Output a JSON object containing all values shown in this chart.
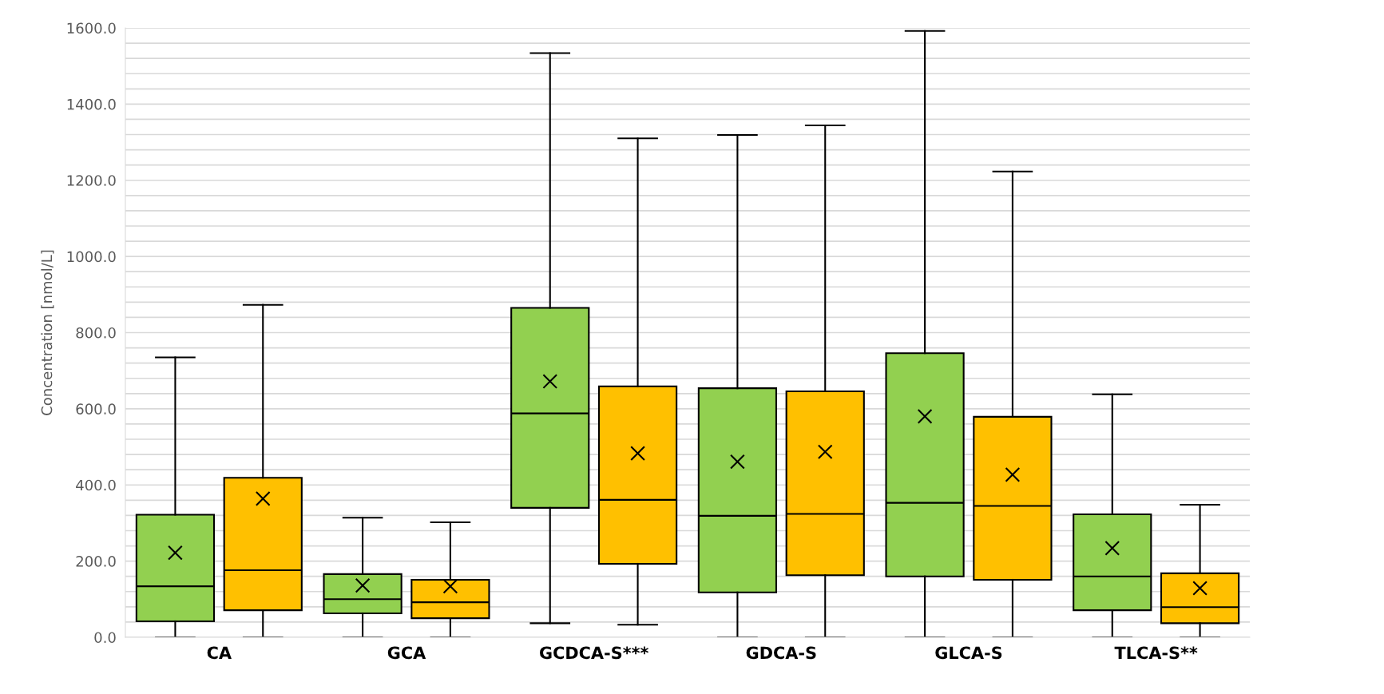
{
  "chart_data": {
    "type": "box",
    "ylabel": "Concentration [nmol/L]",
    "categories": [
      "CA",
      "GCA",
      "GCDCA-S***",
      "GDCA-S",
      "GLCA-S",
      "TLCA-S**"
    ],
    "ylim": [
      0,
      1600
    ],
    "yticks": [
      {
        "value": 0,
        "label": "0.0"
      },
      {
        "value": 40,
        "label": null
      },
      {
        "value": 80,
        "label": null
      },
      {
        "value": 120,
        "label": null
      },
      {
        "value": 160,
        "label": null
      },
      {
        "value": 200,
        "label": "200.0"
      },
      {
        "value": 240,
        "label": null
      },
      {
        "value": 280,
        "label": null
      },
      {
        "value": 320,
        "label": null
      },
      {
        "value": 360,
        "label": null
      },
      {
        "value": 400,
        "label": "400.0"
      },
      {
        "value": 440,
        "label": null
      },
      {
        "value": 480,
        "label": null
      },
      {
        "value": 520,
        "label": null
      },
      {
        "value": 560,
        "label": null
      },
      {
        "value": 600,
        "label": "600.0"
      },
      {
        "value": 640,
        "label": null
      },
      {
        "value": 680,
        "label": null
      },
      {
        "value": 720,
        "label": null
      },
      {
        "value": 760,
        "label": null
      },
      {
        "value": 800,
        "label": "800.0"
      },
      {
        "value": 840,
        "label": null
      },
      {
        "value": 880,
        "label": null
      },
      {
        "value": 920,
        "label": null
      },
      {
        "value": 960,
        "label": null
      },
      {
        "value": 1000,
        "label": "1000.0"
      },
      {
        "value": 1040,
        "label": null
      },
      {
        "value": 1080,
        "label": null
      },
      {
        "value": 1120,
        "label": null
      },
      {
        "value": 1160,
        "label": null
      },
      {
        "value": 1200,
        "label": "1200.0"
      },
      {
        "value": 1240,
        "label": null
      },
      {
        "value": 1280,
        "label": null
      },
      {
        "value": 1320,
        "label": null
      },
      {
        "value": 1360,
        "label": null
      },
      {
        "value": 1400,
        "label": "1400.0"
      },
      {
        "value": 1440,
        "label": null
      },
      {
        "value": 1480,
        "label": null
      },
      {
        "value": 1520,
        "label": null
      },
      {
        "value": 1560,
        "label": null
      },
      {
        "value": 1600,
        "label": "1600.0"
      }
    ],
    "grid": "y",
    "legend": false,
    "marker": "cross",
    "series": [
      {
        "color": "#92d050",
        "boxes": [
          {
            "low": 0,
            "q1": 42,
            "median": 134,
            "q3": 322,
            "high": 735,
            "mean": 222
          },
          {
            "low": 0,
            "q1": 63,
            "median": 100,
            "q3": 166,
            "high": 314,
            "mean": 136
          },
          {
            "low": 37,
            "q1": 340,
            "median": 588,
            "q3": 865,
            "high": 1534,
            "mean": 672
          },
          {
            "low": 0,
            "q1": 118,
            "median": 319,
            "q3": 654,
            "high": 1319,
            "mean": 461
          },
          {
            "low": 0,
            "q1": 160,
            "median": 353,
            "q3": 746,
            "high": 1592,
            "mean": 580
          },
          {
            "low": 0,
            "q1": 71,
            "median": 160,
            "q3": 323,
            "high": 638,
            "mean": 234
          }
        ]
      },
      {
        "color": "#ffc000",
        "boxes": [
          {
            "low": 0,
            "q1": 71,
            "median": 176,
            "q3": 419,
            "high": 873,
            "mean": 364
          },
          {
            "low": 0,
            "q1": 50,
            "median": 92,
            "q3": 151,
            "high": 302,
            "mean": 134
          },
          {
            "low": 33,
            "q1": 193,
            "median": 361,
            "q3": 659,
            "high": 1310,
            "mean": 483
          },
          {
            "low": 0,
            "q1": 163,
            "median": 324,
            "q3": 646,
            "high": 1344,
            "mean": 487
          },
          {
            "low": 0,
            "q1": 151,
            "median": 345,
            "q3": 579,
            "high": 1223,
            "mean": 427
          },
          {
            "low": 0,
            "q1": 37,
            "median": 79,
            "q3": 168,
            "high": 348,
            "mean": 129
          }
        ]
      }
    ]
  }
}
